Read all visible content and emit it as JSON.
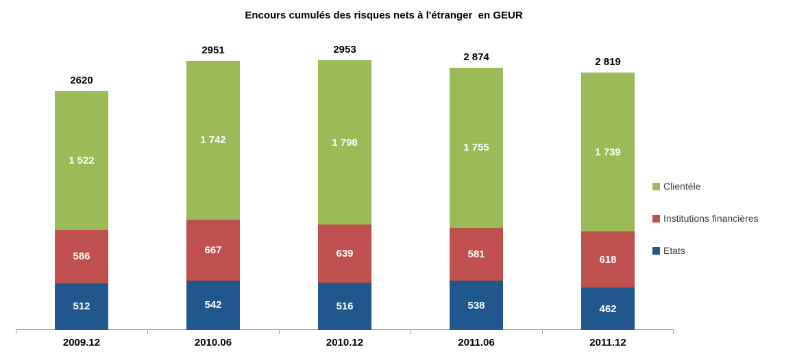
{
  "chart_data": {
    "type": "bar",
    "stacked": true,
    "title": "Encours cumulés des risques nets à l'étranger  en GEUR",
    "categories": [
      "2009.12",
      "2010.06",
      "2010.12",
      "2011.06",
      "2011.12"
    ],
    "series": [
      {
        "name": "Etats",
        "color": "#20578C",
        "values": [
          512,
          542,
          516,
          538,
          462
        ],
        "labels": [
          "512",
          "542",
          "516",
          "538",
          "462"
        ]
      },
      {
        "name": "Institutions financières",
        "color": "#C0504D",
        "values": [
          586,
          667,
          639,
          581,
          618
        ],
        "labels": [
          "586",
          "667",
          "639",
          "581",
          "618"
        ]
      },
      {
        "name": "Clientèle",
        "color": "#9BBB59",
        "values": [
          1522,
          1742,
          1798,
          1755,
          1739
        ],
        "labels": [
          "1 522",
          "1 742",
          "1 798",
          "1 755",
          "1 739"
        ]
      }
    ],
    "totals": [
      2620,
      2951,
      2953,
      2874,
      2819
    ],
    "total_labels": [
      "2620",
      "2951",
      "2953",
      "2 874",
      "2 819"
    ],
    "legend": [
      {
        "label": "Clientèle",
        "color": "#9BBB59"
      },
      {
        "label": "Institutions financières",
        "color": "#C0504D"
      },
      {
        "label": "Etats",
        "color": "#20578C"
      }
    ],
    "legend_position": "right",
    "grid": false,
    "axis_color": "#A6A6A6",
    "xlabel": "",
    "ylabel": "",
    "ylim": [
      0,
      3315
    ]
  }
}
